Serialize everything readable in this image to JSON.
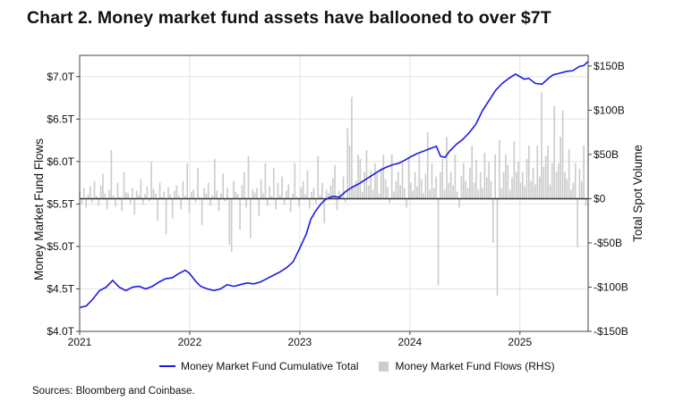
{
  "title": "Chart 2. Money market fund assets have ballooned to over $7T",
  "source": "Sources: Bloomberg and Coinbase.",
  "colors": {
    "line": "#1a1ae6",
    "bars": "#cccccc",
    "zero": "#333333",
    "grid": "#e4e4e4"
  },
  "chart_data": {
    "type": "line",
    "title": "",
    "xlabel": "",
    "ylabel": "Money Market Fund Flows",
    "y2label": "Total Spot Volume",
    "grid": true,
    "legend_position": "bottom",
    "xlim": [
      2021.0,
      2025.62
    ],
    "ylim": [
      4.0,
      7.25
    ],
    "y2lim": [
      -150,
      162
    ],
    "x_ticks": [
      2021,
      2022,
      2023,
      2024,
      2025
    ],
    "x_tick_labels": [
      "2021",
      "2022",
      "2023",
      "2024",
      "2025"
    ],
    "y_ticks": [
      4.0,
      4.5,
      5.0,
      5.5,
      6.0,
      6.5,
      7.0
    ],
    "y_tick_labels": [
      "$4.0T",
      "$4.5T",
      "$5.0T",
      "$5.5T",
      "$6.0T",
      "$6.5T",
      "$7.0T"
    ],
    "y2_ticks": [
      -150,
      -100,
      -50,
      0,
      50,
      100,
      150
    ],
    "y2_tick_labels": [
      "-$150B",
      "-$100B",
      "-$50B",
      "$0",
      "$50B",
      "$100B",
      "$150B"
    ],
    "series": [
      {
        "name": "Money Market Fund Cumulative Total",
        "axis": "left",
        "x": [
          2021.0,
          2021.06,
          2021.12,
          2021.18,
          2021.24,
          2021.3,
          2021.36,
          2021.42,
          2021.48,
          2021.54,
          2021.6,
          2021.66,
          2021.72,
          2021.78,
          2021.84,
          2021.9,
          2021.96,
          2022.0,
          2022.06,
          2022.1,
          2022.16,
          2022.22,
          2022.28,
          2022.34,
          2022.4,
          2022.46,
          2022.52,
          2022.58,
          2022.64,
          2022.7,
          2022.76,
          2022.82,
          2022.88,
          2022.94,
          2023.0,
          2023.06,
          2023.1,
          2023.14,
          2023.18,
          2023.22,
          2023.26,
          2023.3,
          2023.36,
          2023.42,
          2023.48,
          2023.54,
          2023.6,
          2023.66,
          2023.72,
          2023.78,
          2023.84,
          2023.9,
          2023.96,
          2024.0,
          2024.06,
          2024.12,
          2024.18,
          2024.24,
          2024.28,
          2024.32,
          2024.36,
          2024.42,
          2024.48,
          2024.54,
          2024.6,
          2024.66,
          2024.72,
          2024.78,
          2024.84,
          2024.9,
          2024.96,
          2025.0,
          2025.04,
          2025.08,
          2025.14,
          2025.2,
          2025.26,
          2025.3,
          2025.36,
          2025.42,
          2025.48,
          2025.54,
          2025.58,
          2025.62
        ],
        "values": [
          4.28,
          4.3,
          4.38,
          4.48,
          4.52,
          4.6,
          4.52,
          4.48,
          4.52,
          4.53,
          4.5,
          4.53,
          4.58,
          4.62,
          4.63,
          4.68,
          4.72,
          4.68,
          4.58,
          4.53,
          4.5,
          4.48,
          4.5,
          4.55,
          4.53,
          4.55,
          4.57,
          4.56,
          4.58,
          4.62,
          4.66,
          4.7,
          4.75,
          4.82,
          4.98,
          5.15,
          5.32,
          5.41,
          5.48,
          5.54,
          5.57,
          5.59,
          5.58,
          5.65,
          5.7,
          5.74,
          5.79,
          5.84,
          5.89,
          5.93,
          5.96,
          5.98,
          6.02,
          6.05,
          6.09,
          6.12,
          6.15,
          6.18,
          6.06,
          6.05,
          6.12,
          6.2,
          6.26,
          6.34,
          6.44,
          6.6,
          6.72,
          6.84,
          6.92,
          6.98,
          7.03,
          7.0,
          6.97,
          6.98,
          6.92,
          6.91,
          6.98,
          7.02,
          7.04,
          7.06,
          7.07,
          7.12,
          7.13,
          7.18
        ]
      },
      {
        "name": "Money Market Fund Flows (RHS)",
        "axis": "right",
        "start_x": 2021.0,
        "step_weeks": 1,
        "values": [
          8,
          -6,
          12,
          -10,
          5,
          14,
          -4,
          20,
          3,
          -8,
          15,
          28,
          6,
          -12,
          10,
          55,
          4,
          -9,
          18,
          2,
          -14,
          30,
          7,
          6,
          -5,
          12,
          -18,
          9,
          4,
          22,
          -7,
          5,
          14,
          -3,
          42,
          11,
          6,
          -25,
          18,
          2,
          8,
          -40,
          13,
          5,
          -22,
          9,
          15,
          4,
          -12,
          20,
          3,
          40,
          -16,
          8,
          10,
          -4,
          35,
          2,
          -30,
          12,
          6,
          18,
          -8,
          4,
          45,
          9,
          -14,
          6,
          28,
          -3,
          12,
          -52,
          -60,
          20,
          8,
          5,
          -35,
          15,
          30,
          -10,
          48,
          -45,
          10,
          7,
          12,
          -20,
          22,
          6,
          40,
          -8,
          14,
          3,
          35,
          -12,
          18,
          4,
          25,
          -7,
          9,
          16,
          -15,
          6,
          40,
          2,
          -9,
          13,
          20,
          5,
          32,
          -11,
          8,
          12,
          -6,
          48,
          4,
          18,
          -28,
          10,
          6,
          15,
          23,
          38,
          -13,
          9,
          5,
          25,
          -4,
          80,
          60,
          115,
          12,
          20,
          50,
          45,
          8,
          30,
          55,
          15,
          32,
          10,
          40,
          28,
          6,
          35,
          50,
          22,
          13,
          -5,
          50,
          8,
          20,
          30,
          15,
          42,
          12,
          -10,
          46,
          18,
          9,
          30,
          14,
          50,
          22,
          6,
          28,
          75,
          10,
          40,
          12,
          25,
          -98,
          30,
          45,
          10,
          70,
          18,
          30,
          15,
          50,
          8,
          -10,
          26,
          40,
          20,
          12,
          35,
          60,
          18,
          44,
          10,
          30,
          12,
          52,
          24,
          42,
          20,
          -50,
          50,
          -110,
          66,
          12,
          30,
          50,
          38,
          10,
          24,
          65,
          30,
          42,
          18,
          30,
          14,
          45,
          60,
          20,
          35,
          16,
          60,
          25,
          120,
          36,
          48,
          60,
          16,
          40,
          105,
          30,
          40,
          70,
          100,
          30,
          22,
          56,
          10,
          18,
          40,
          -55,
          34,
          20,
          60,
          -8,
          34,
          25,
          44,
          -125,
          30,
          14,
          60,
          -2,
          50,
          18,
          40,
          10,
          30,
          20,
          62,
          -5,
          10,
          75,
          -4,
          8,
          12,
          78,
          10
        ]
      }
    ]
  }
}
